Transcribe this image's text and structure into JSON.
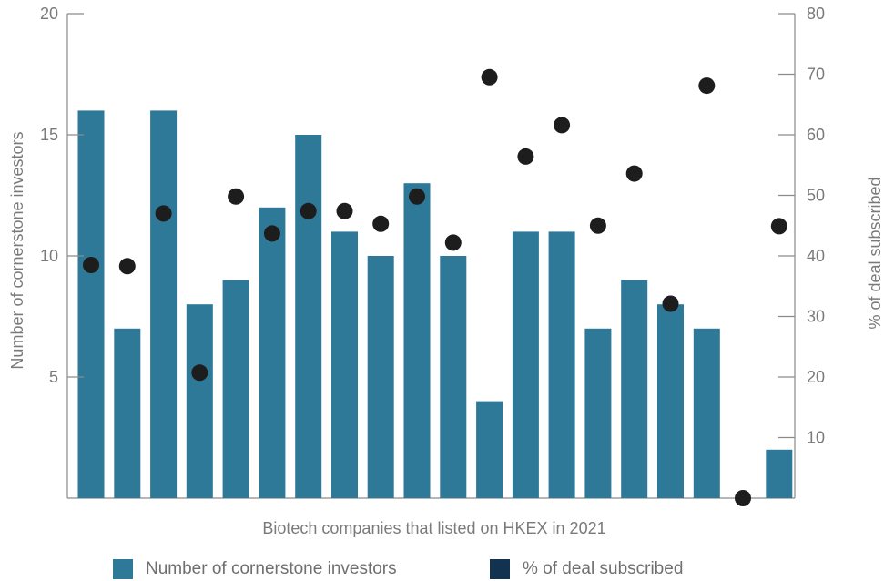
{
  "chart_data": {
    "type": "bar",
    "xlabel": "Biotech companies that listed on HKEX in 2021",
    "ylabel": "Number of cornerstone investors",
    "y2label": "% of deal subscribed",
    "ylim": [
      0,
      20
    ],
    "y2lim": [
      0,
      80
    ],
    "yticks": [
      "5",
      "10",
      "15",
      "20"
    ],
    "y2ticks": [
      "10",
      "20",
      "30",
      "40",
      "50",
      "60",
      "70",
      "80"
    ],
    "grid": false,
    "legend_position": "bottom",
    "series": [
      {
        "name": "Number of cornerstone investors",
        "kind": "bar",
        "axis": "left",
        "color": "#2e7898",
        "values": [
          16,
          7,
          16,
          8,
          9,
          12,
          15,
          11,
          10,
          13,
          10,
          4,
          11,
          11,
          7,
          9,
          8,
          7,
          0,
          2
        ]
      },
      {
        "name": "% of deal subscribed",
        "kind": "scatter",
        "axis": "right",
        "color": "#1d1d1d",
        "legend_color": "#13324f",
        "values": [
          38.5,
          38.3,
          47.0,
          20.7,
          49.8,
          43.7,
          47.4,
          47.4,
          45.3,
          49.8,
          42.2,
          69.5,
          56.4,
          61.6,
          45.0,
          53.6,
          32.1,
          68.1,
          0.0,
          44.9
        ]
      }
    ]
  }
}
